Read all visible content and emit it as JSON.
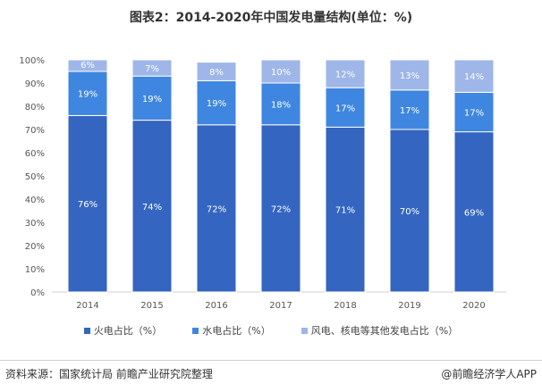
{
  "title": "图表2：2014-2020年中国发电量结构(单位：%)",
  "source": "资料来源：国家统计局 前瞻产业研究院整理",
  "credit": "@前瞻经济学人APP",
  "colors": {
    "thermal": "#3465c0",
    "hydro": "#3f86e0",
    "other": "#9fb6e8"
  },
  "chart_data": {
    "type": "bar",
    "stacked": true,
    "percent_axis": true,
    "categories": [
      "2014",
      "2015",
      "2016",
      "2017",
      "2018",
      "2019",
      "2020"
    ],
    "series": [
      {
        "name": "火电占比（%）",
        "values": [
          76,
          74,
          72,
          72,
          71,
          70,
          69
        ],
        "labels": [
          "76%",
          "74%",
          "72%",
          "72%",
          "71%",
          "70%",
          "69%"
        ]
      },
      {
        "name": "水电占比（%）",
        "values": [
          19,
          19,
          19,
          18,
          17,
          17,
          17
        ],
        "labels": [
          "19%",
          "19%",
          "19%",
          "18%",
          "17%",
          "17%",
          "17%"
        ]
      },
      {
        "name": "风电、核电等其他发电占比（%）",
        "values": [
          6,
          7,
          8,
          10,
          12,
          13,
          14
        ],
        "labels": [
          "6%",
          "7%",
          "8%",
          "10%",
          "12%",
          "13%",
          "14%"
        ]
      }
    ],
    "ylim": [
      0,
      100
    ],
    "yticks": [
      "0%",
      "10%",
      "20%",
      "30%",
      "40%",
      "50%",
      "60%",
      "70%",
      "80%",
      "90%",
      "100%"
    ],
    "grid": false,
    "legend_position": "bottom"
  }
}
